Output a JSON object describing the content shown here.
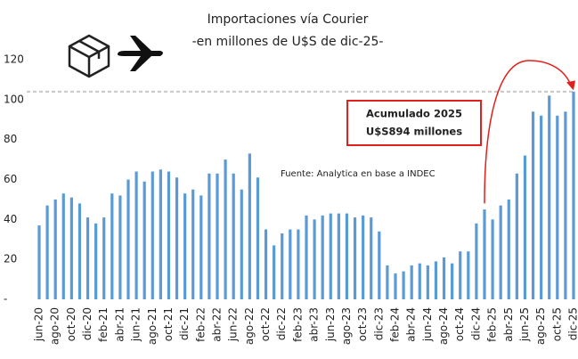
{
  "chart_data": {
    "type": "bar",
    "title": "Importaciones vía Courier",
    "subtitle": "-en millones de U$S de dic-25-",
    "annotation": [
      "Acumulado 2025",
      "U$S894 millones"
    ],
    "source": "Fuente: Analytica en base a INDEC",
    "categories": [
      "jun-20",
      null,
      "ago-20",
      null,
      "oct-20",
      null,
      "dic-20",
      null,
      "feb-21",
      null,
      "abr-21",
      null,
      "jun-21",
      null,
      "ago-21",
      null,
      "oct-21",
      null,
      "dic-21",
      null,
      "feb-22",
      null,
      "abr-22",
      null,
      "jun-22",
      null,
      "ago-22",
      null,
      "oct-22",
      null,
      "dic-22",
      null,
      "feb-23",
      null,
      "abr-23",
      null,
      "jun-23",
      null,
      "ago-23",
      null,
      "oct-23",
      null,
      "dic-23",
      null,
      "feb-24",
      null,
      "abr-24",
      null,
      "jun-24",
      null,
      "ago-24",
      null,
      "oct-24",
      null,
      "dic-24",
      null,
      "feb-25",
      null,
      "abr-25",
      null,
      "jun-25",
      null,
      "ago-25",
      null,
      "oct-25",
      null,
      "dic-25"
    ],
    "values": [
      37,
      47,
      50,
      53,
      51,
      48,
      41,
      38,
      41,
      53,
      52,
      60,
      64,
      59,
      64,
      65,
      64,
      61,
      53,
      55,
      52,
      63,
      63,
      70,
      63,
      55,
      73,
      61,
      35,
      27,
      33,
      35,
      35,
      42,
      40,
      42,
      43,
      43,
      43,
      41,
      42,
      41,
      34,
      17,
      13,
      14,
      17,
      18,
      17,
      19,
      21,
      18,
      24,
      24,
      38,
      45,
      40,
      47,
      50,
      63,
      72,
      94,
      92,
      102,
      92,
      94,
      104
    ],
    "color": "#5b9bd5",
    "reference_value": 104,
    "ylim": [
      0,
      120
    ],
    "yticks": [
      {
        "value": 0,
        "label": "-"
      },
      20,
      40,
      60,
      80,
      100,
      120
    ],
    "grid": false
  }
}
